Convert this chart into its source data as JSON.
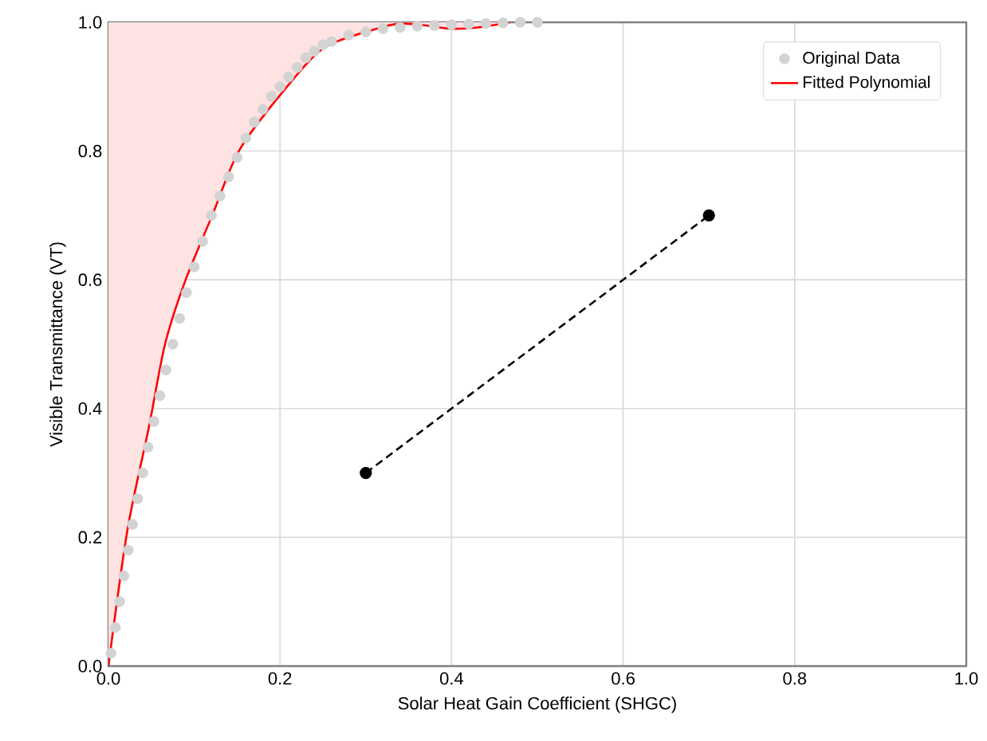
{
  "chart_data": {
    "type": "line",
    "xlabel": "Solar Heat Gain Coefficient (SHGC)",
    "ylabel": "Visible Transmittance (VT)",
    "xlim": [
      0,
      1
    ],
    "ylim": [
      0,
      1
    ],
    "xticks": [
      {
        "value": 0,
        "label": "0.0"
      },
      {
        "value": 0.2,
        "label": "0.2"
      },
      {
        "value": 0.4,
        "label": "0.4"
      },
      {
        "value": 0.6,
        "label": "0.6"
      },
      {
        "value": 0.8,
        "label": "0.8"
      },
      {
        "value": 1,
        "label": "1.0"
      }
    ],
    "yticks": [
      {
        "value": 0,
        "label": "0.0"
      },
      {
        "value": 0.2,
        "label": "0.2"
      },
      {
        "value": 0.4,
        "label": "0.4"
      },
      {
        "value": 0.6,
        "label": "0.6"
      },
      {
        "value": 0.8,
        "label": "0.8"
      },
      {
        "value": 1,
        "label": "1.0"
      }
    ],
    "grid": true,
    "legend": "top right",
    "series": [
      {
        "name": "Original Data",
        "type": "scatter",
        "marker": "circle",
        "color": "#d3d3d3",
        "x": [
          0.003,
          0.008,
          0.013,
          0.018,
          0.023,
          0.028,
          0.034,
          0.04,
          0.046,
          0.053,
          0.06,
          0.067,
          0.075,
          0.083,
          0.091,
          0.1,
          0.11,
          0.12,
          0.13,
          0.14,
          0.15,
          0.16,
          0.17,
          0.18,
          0.19,
          0.2,
          0.21,
          0.22,
          0.23,
          0.24,
          0.25,
          0.26,
          0.28,
          0.3,
          0.32,
          0.34,
          0.36,
          0.38,
          0.4,
          0.42,
          0.44,
          0.46,
          0.48,
          0.5
        ],
        "values": [
          0.02,
          0.06,
          0.1,
          0.14,
          0.18,
          0.22,
          0.26,
          0.3,
          0.34,
          0.38,
          0.42,
          0.46,
          0.5,
          0.54,
          0.58,
          0.62,
          0.66,
          0.7,
          0.73,
          0.76,
          0.79,
          0.82,
          0.845,
          0.865,
          0.885,
          0.9,
          0.915,
          0.93,
          0.945,
          0.955,
          0.965,
          0.97,
          0.98,
          0.985,
          0.99,
          0.992,
          0.994,
          0.995,
          0.996,
          0.997,
          0.998,
          0.999,
          1.0,
          1.0
        ]
      },
      {
        "name": "Fitted Polynomial",
        "type": "line",
        "marker": "none",
        "color": "#ff0000",
        "x": [
          0,
          0.022,
          0.047,
          0.066,
          0.09,
          0.121,
          0.152,
          0.202,
          0.251,
          0.313,
          0.34,
          0.37,
          0.4,
          0.43,
          0.468
        ],
        "values": [
          0,
          0.21,
          0.37,
          0.5,
          0.6,
          0.7,
          0.8,
          0.89,
          0.96,
          0.99,
          0.998,
          0.995,
          0.99,
          0.992,
          1.0
        ],
        "lower": [
          0,
          0.21,
          0.37,
          0.5,
          0.6,
          0.7,
          0.8,
          0.89,
          0.96,
          0.99,
          0.998,
          0.995,
          0.99,
          0.992,
          1.0
        ],
        "upper": [
          1,
          1,
          1,
          1,
          1,
          1,
          1,
          1,
          1,
          1,
          1,
          1,
          1,
          1,
          1
        ]
      },
      {
        "marker": "circle",
        "line_style": "dashed",
        "color": "#000000",
        "x": [
          0.3,
          0.7
        ],
        "values": [
          0.3,
          0.7
        ]
      }
    ]
  }
}
